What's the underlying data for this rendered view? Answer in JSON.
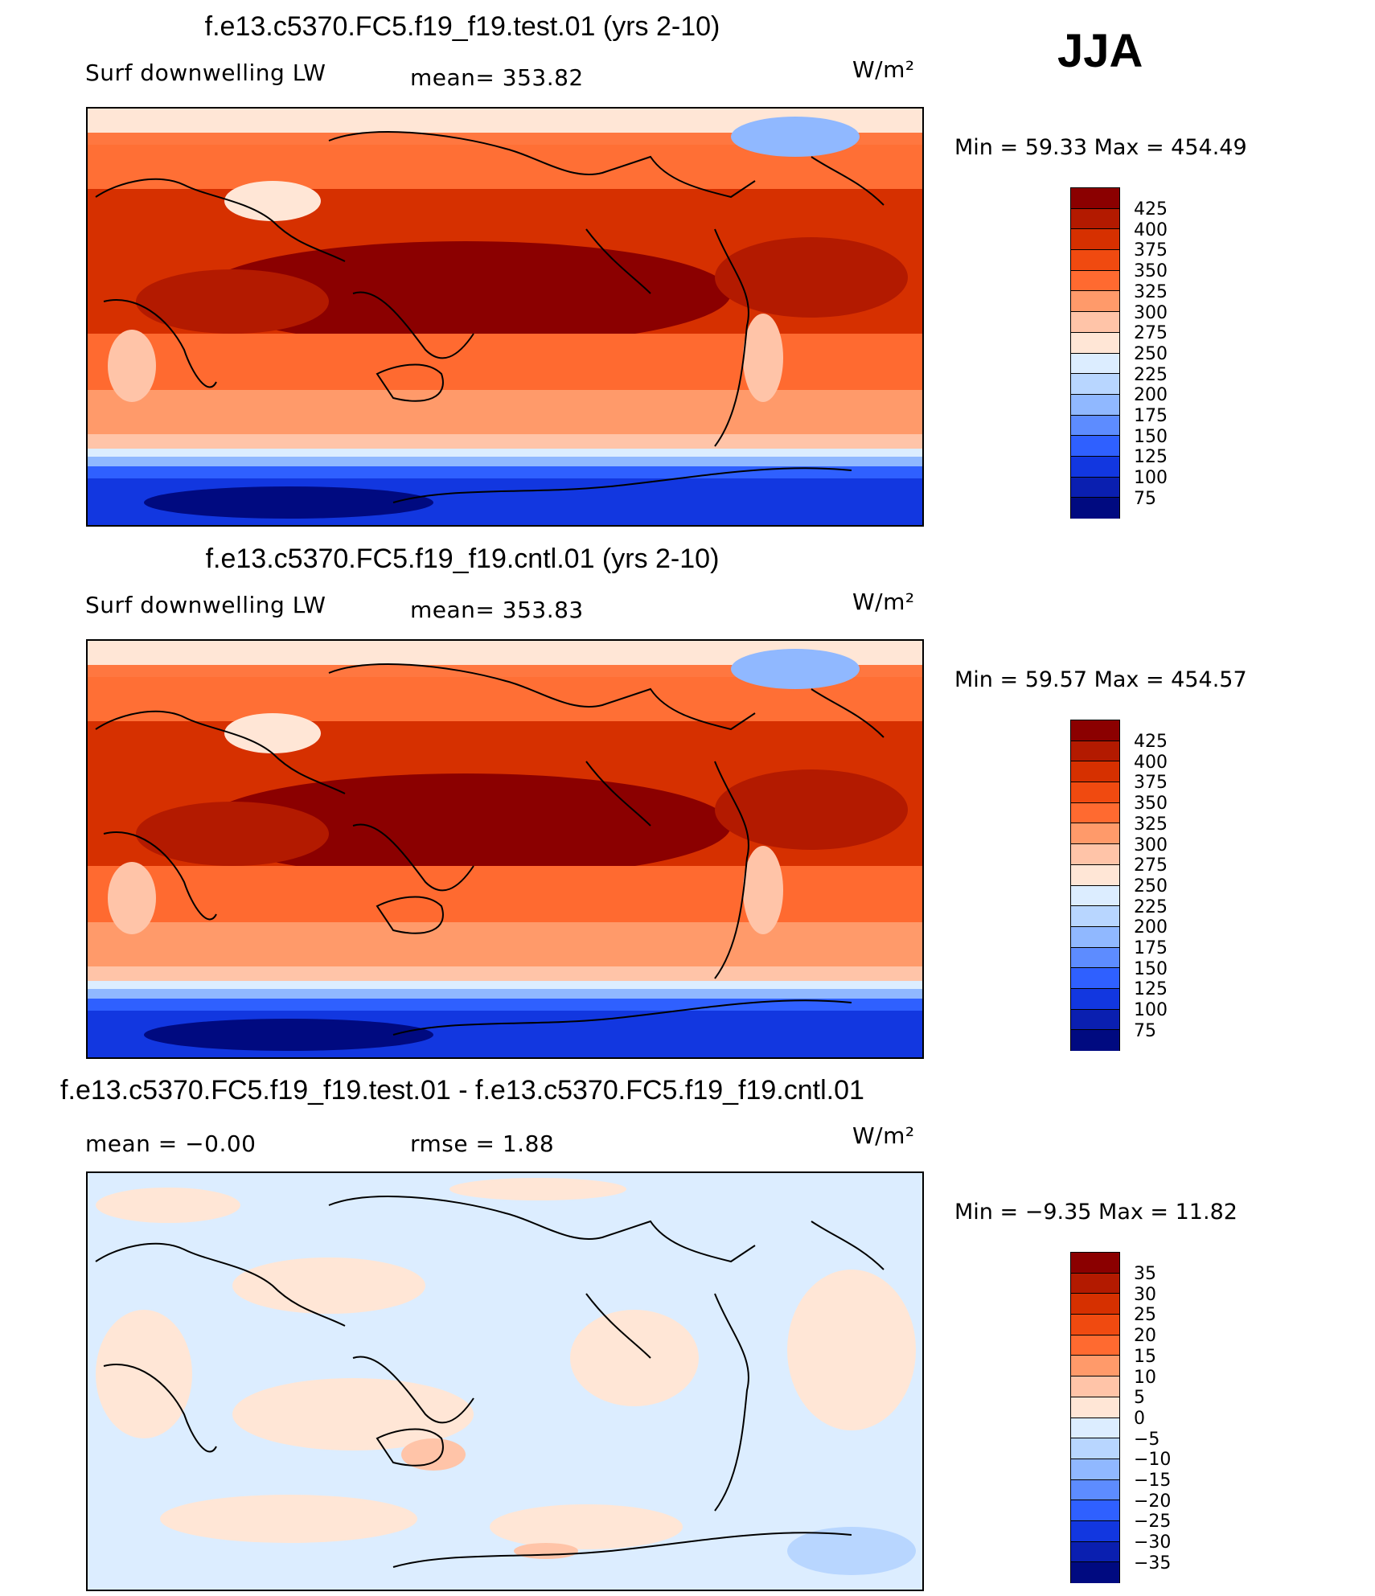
{
  "season": "JJA",
  "panels": [
    {
      "title": "f.e13.c5370.FC5.f19_f19.test.01 (yrs 2-10)",
      "left": "Surf downwelling LW",
      "mid": "mean= 353.82",
      "units": "W/m²",
      "minmax": "Min =   59.33 Max  =  454.49",
      "ticks": [
        "425",
        "400",
        "375",
        "350",
        "325",
        "300",
        "275",
        "250",
        "225",
        "200",
        "175",
        "150",
        "125",
        "100",
        "75"
      ],
      "colors": [
        "#8b0000",
        "#b31a00",
        "#d63000",
        "#f04a10",
        "#ff6a30",
        "#ff9a6a",
        "#ffc4a8",
        "#ffe6d6",
        "#dcedff",
        "#b8d6ff",
        "#90b8ff",
        "#5d8cff",
        "#2f60ff",
        "#1237e0",
        "#0a1fb0",
        "#000a80"
      ]
    },
    {
      "title": "f.e13.c5370.FC5.f19_f19.cntl.01 (yrs 2-10)",
      "left": "Surf downwelling LW",
      "mid": "mean= 353.83",
      "units": "W/m²",
      "minmax": "Min =   59.57 Max  =  454.57",
      "ticks": [
        "425",
        "400",
        "375",
        "350",
        "325",
        "300",
        "275",
        "250",
        "225",
        "200",
        "175",
        "150",
        "125",
        "100",
        "75"
      ],
      "colors": [
        "#8b0000",
        "#b31a00",
        "#d63000",
        "#f04a10",
        "#ff6a30",
        "#ff9a6a",
        "#ffc4a8",
        "#ffe6d6",
        "#dcedff",
        "#b8d6ff",
        "#90b8ff",
        "#5d8cff",
        "#2f60ff",
        "#1237e0",
        "#0a1fb0",
        "#000a80"
      ]
    },
    {
      "title": "f.e13.c5370.FC5.f19_f19.test.01 - f.e13.c5370.FC5.f19_f19.cntl.01",
      "left": "mean =   −0.00",
      "mid": "rmse =    1.88",
      "units": "W/m²",
      "minmax": "Min =   −9.35 Max  =   11.82",
      "ticks": [
        "35",
        "30",
        "25",
        "20",
        "15",
        "10",
        "5",
        "0",
        "−5",
        "−10",
        "−15",
        "−20",
        "−25",
        "−30",
        "−35"
      ],
      "colors": [
        "#8b0000",
        "#b31a00",
        "#d63000",
        "#f04a10",
        "#ff6a30",
        "#ff9a6a",
        "#ffc4a8",
        "#ffe6d6",
        "#dcedff",
        "#b8d6ff",
        "#90b8ff",
        "#5d8cff",
        "#2f60ff",
        "#1237e0",
        "#0a1fb0",
        "#000a80"
      ]
    }
  ]
}
